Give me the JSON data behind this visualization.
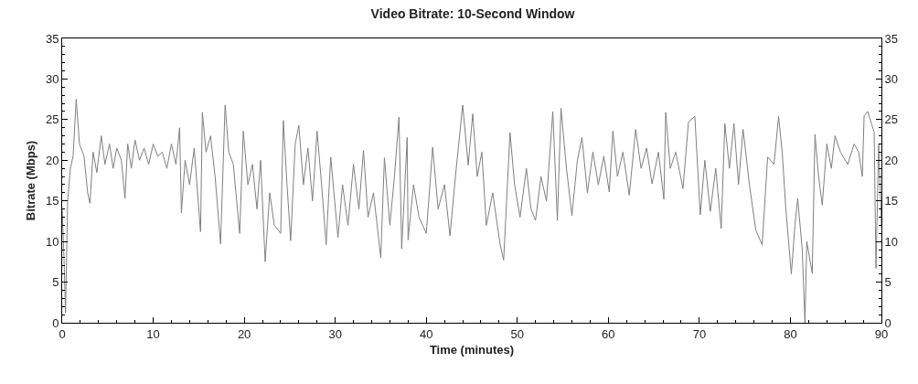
{
  "chart_data": {
    "type": "line",
    "title": "Video Bitrate: 10-Second Window",
    "xlabel": "Time (minutes)",
    "ylabel": "Bitrate (Mbps)",
    "xlim": [
      0,
      90
    ],
    "xticks": [
      0,
      10,
      20,
      30,
      40,
      50,
      60,
      70,
      80,
      90
    ],
    "ylim": [
      0,
      35
    ],
    "yticks": [
      0,
      5,
      10,
      15,
      20,
      25,
      30,
      35
    ],
    "y2lim": [
      0,
      35
    ],
    "y2ticks": [
      0,
      5,
      10,
      15,
      20,
      25,
      30,
      35
    ],
    "grid": false,
    "marker": "none",
    "line_style": "solid",
    "series": [
      {
        "color": "#808080",
        "x": [
          0,
          0.2,
          0.37,
          0.6,
          0.9,
          1.2,
          1.54,
          1.9,
          2.4,
          2.8,
          3.05,
          3.4,
          3.8,
          4.3,
          4.7,
          5.2,
          5.6,
          6.0,
          6.5,
          6.9,
          7.2,
          7.6,
          8.0,
          8.5,
          9.0,
          9.5,
          10.0,
          10.5,
          11.0,
          11.5,
          12.0,
          12.5,
          12.9,
          13.1,
          13.5,
          14.0,
          14.5,
          15.2,
          15.4,
          15.8,
          16.3,
          16.8,
          17.4,
          17.9,
          18.3,
          18.8,
          19.5,
          19.9,
          20.4,
          20.9,
          21.4,
          21.8,
          22.3,
          22.8,
          23.3,
          24.0,
          24.3,
          24.7,
          25.1,
          25.6,
          26.0,
          26.5,
          27.0,
          27.5,
          28.0,
          28.5,
          29.0,
          29.5,
          30.3,
          30.8,
          31.4,
          32.0,
          32.6,
          33.1,
          33.6,
          34.2,
          35.0,
          35.4,
          36.0,
          36.5,
          37.0,
          37.3,
          37.9,
          38.0,
          38.6,
          39.2,
          40.0,
          40.7,
          41.3,
          42.0,
          42.6,
          43.2,
          44.0,
          44.6,
          45.1,
          45.6,
          46.1,
          46.6,
          47.3,
          48.1,
          48.5,
          49.2,
          49.7,
          50.3,
          51.0,
          51.5,
          52.0,
          52.6,
          53.2,
          53.9,
          54.4,
          54.8,
          55.4,
          56.0,
          56.6,
          57.1,
          57.7,
          58.3,
          58.9,
          59.5,
          60.1,
          60.5,
          61.0,
          61.6,
          62.3,
          63.0,
          63.6,
          64.2,
          64.8,
          65.5,
          66.1,
          66.3,
          66.8,
          67.4,
          68.2,
          68.8,
          69.5,
          70.1,
          70.6,
          71.2,
          71.8,
          72.4,
          72.8,
          73.3,
          73.8,
          74.3,
          74.8,
          75.5,
          76.2,
          76.9,
          77.5,
          78.2,
          78.7,
          79.1,
          79.5,
          80.1,
          80.5,
          80.8,
          81.3,
          81.6,
          81.8,
          82.4,
          82.7,
          83.1,
          83.5,
          84.0,
          84.5,
          84.9,
          85.5,
          86.3,
          87.0,
          87.5,
          87.9,
          88.1,
          88.5,
          88.9,
          89.2,
          89.4,
          89.7,
          90
        ],
        "values": [
          14,
          8,
          1.2,
          15,
          19,
          20.5,
          27.5,
          22,
          20.5,
          16,
          14.7,
          21,
          18.5,
          23,
          19.5,
          22,
          19,
          21.5,
          20,
          15.3,
          22,
          19,
          22.5,
          20,
          21.5,
          19.5,
          22,
          20.5,
          21,
          19,
          22,
          19.5,
          24,
          13.5,
          20,
          17,
          21.5,
          11.2,
          25.9,
          21,
          23,
          18,
          9.7,
          26.8,
          21,
          19.5,
          11,
          23.6,
          17,
          19.5,
          14,
          20,
          7.5,
          16,
          12,
          11,
          24.9,
          17,
          10.1,
          22,
          24.3,
          17,
          21.5,
          15,
          23.6,
          17,
          9.6,
          20.4,
          10.5,
          17,
          12,
          19.5,
          14,
          21.2,
          13,
          16,
          8,
          20.3,
          12,
          18,
          25.3,
          9.1,
          22.8,
          10.2,
          17,
          13,
          11,
          21.6,
          14,
          17,
          10.7,
          18,
          26.8,
          19.4,
          25.7,
          18,
          21,
          12,
          16,
          9.7,
          7.7,
          23.4,
          17,
          13,
          19,
          14,
          12.6,
          18,
          15,
          26,
          12.6,
          26.4,
          19,
          13.2,
          20,
          22.8,
          16,
          21,
          17,
          20.5,
          16.1,
          23.6,
          18,
          21,
          15.7,
          23.8,
          19,
          21.5,
          17.1,
          21,
          15.2,
          25.9,
          19,
          21,
          16.5,
          24.7,
          25.4,
          13.3,
          20,
          13.7,
          19,
          11.6,
          24.5,
          19,
          24.5,
          17,
          23.8,
          17,
          11.4,
          9.6,
          20.4,
          19.5,
          25.4,
          21,
          14,
          6,
          12,
          15.3,
          9,
          0,
          10,
          6.1,
          23.2,
          18,
          14.5,
          22,
          19,
          23,
          21,
          19.5,
          22,
          21,
          18,
          25.5,
          26,
          24.5,
          23.5,
          6.7,
          22,
          12
        ]
      }
    ]
  }
}
